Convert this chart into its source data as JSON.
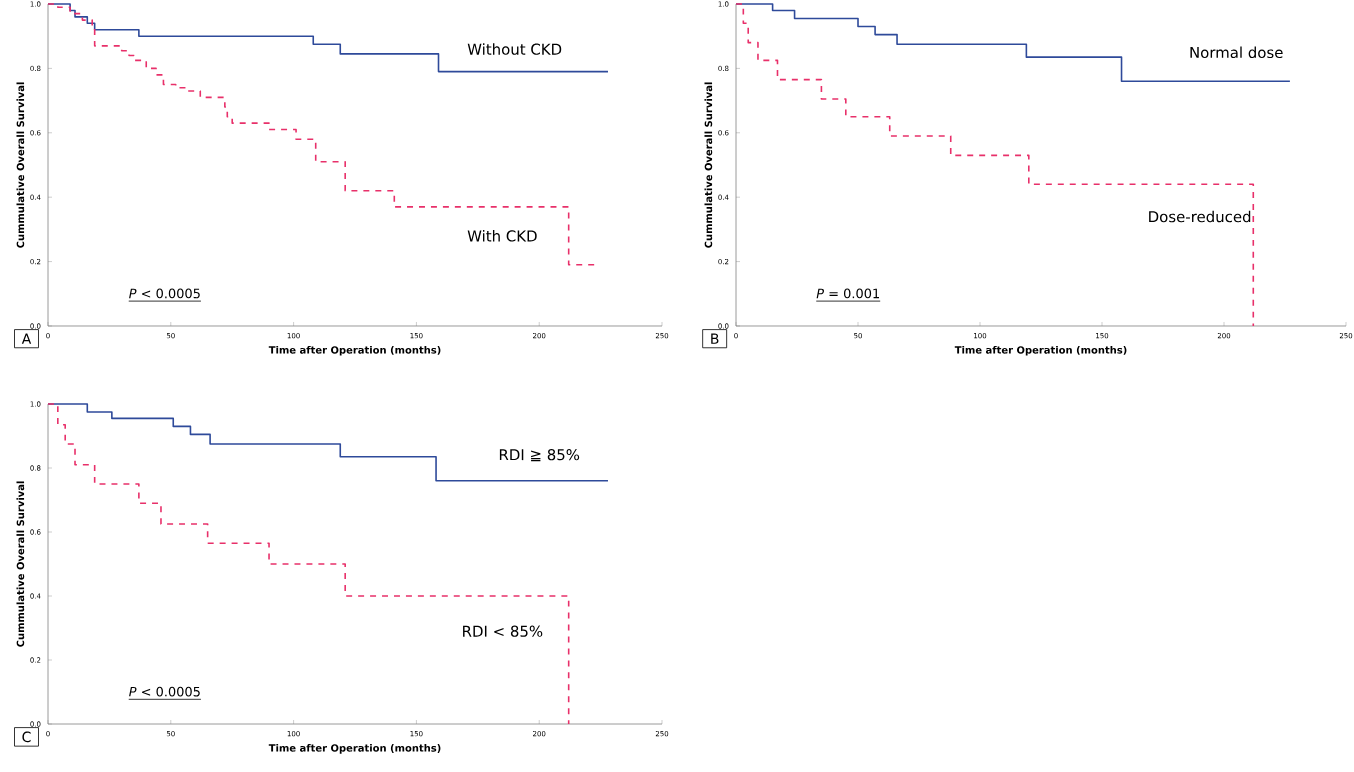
{
  "chart_data": [
    {
      "type": "step",
      "xlabel": "Time after Operation (months)",
      "ylabel": "Cummulative Overall Survival",
      "xlim": [
        0,
        250
      ],
      "xticks": [
        0,
        50,
        100,
        150,
        200,
        250
      ],
      "ylim": [
        0,
        1
      ],
      "yticks": [
        {
          "value": 0,
          "label": "0.0"
        },
        {
          "value": 0.2,
          "label": "0.2"
        },
        {
          "value": 0.4,
          "label": "0.4"
        },
        {
          "value": 0.6,
          "label": "0.6"
        },
        {
          "value": 0.8,
          "label": "0.8"
        },
        {
          "value": 1,
          "label": "1.0"
        }
      ],
      "legend": false,
      "annotations": [
        "A",
        "*P* < 0.0005"
      ],
      "series": [
        {
          "name": "Without CKD",
          "color": "#2e4a9a",
          "line_style": "solid",
          "x": [
            0,
            9,
            11,
            16,
            19,
            37,
            108,
            119,
            159,
            228
          ],
          "values": [
            1,
            0.98,
            0.96,
            0.94,
            0.92,
            0.9,
            0.875,
            0.845,
            0.79,
            0.79
          ]
        },
        {
          "name": "With CKD",
          "color": "#e8306a",
          "line_style": "dashed",
          "x": [
            0,
            4,
            9,
            14,
            18,
            19,
            30,
            33,
            35,
            40,
            44,
            47,
            52,
            57,
            62,
            72,
            73,
            75,
            90,
            101,
            109,
            121,
            141,
            212,
            224
          ],
          "values": [
            1,
            0.99,
            0.97,
            0.95,
            0.93,
            0.87,
            0.855,
            0.84,
            0.825,
            0.8,
            0.78,
            0.75,
            0.74,
            0.73,
            0.71,
            0.68,
            0.65,
            0.63,
            0.61,
            0.58,
            0.51,
            0.42,
            0.37,
            0.19,
            0.19
          ]
        }
      ]
    },
    {
      "type": "step",
      "xlabel": "Time after Operation (months)",
      "ylabel": "Cummulative Overall Survival",
      "xlim": [
        0,
        250
      ],
      "xticks": [
        0,
        50,
        100,
        150,
        200,
        250
      ],
      "ylim": [
        0,
        1
      ],
      "yticks": [
        {
          "value": 0,
          "label": "0.0"
        },
        {
          "value": 0.2,
          "label": "0.2"
        },
        {
          "value": 0.4,
          "label": "0.4"
        },
        {
          "value": 0.6,
          "label": "0.6"
        },
        {
          "value": 0.8,
          "label": "0.8"
        },
        {
          "value": 1,
          "label": "1.0"
        }
      ],
      "legend": false,
      "annotations": [
        "B",
        "*P* = 0.001"
      ],
      "series": [
        {
          "name": "Normal dose",
          "color": "#2e4a9a",
          "line_style": "solid",
          "x": [
            0,
            15,
            24,
            50,
            57,
            66,
            119,
            158,
            227
          ],
          "values": [
            1,
            0.98,
            0.955,
            0.93,
            0.905,
            0.875,
            0.835,
            0.76,
            0.76
          ]
        },
        {
          "name": "Dose-reduced",
          "color": "#e8306a",
          "line_style": "dashed",
          "x": [
            0,
            3,
            5,
            9,
            17,
            35,
            45,
            63,
            88,
            120,
            212
          ],
          "values": [
            1,
            0.94,
            0.88,
            0.825,
            0.765,
            0.705,
            0.65,
            0.59,
            0.53,
            0.44,
            0
          ]
        }
      ]
    },
    {
      "type": "step",
      "xlabel": "Time after Operation (months)",
      "ylabel": "Cummulative Overall Survival",
      "xlim": [
        0,
        250
      ],
      "xticks": [
        0,
        50,
        100,
        150,
        200,
        250
      ],
      "ylim": [
        0,
        1
      ],
      "yticks": [
        {
          "value": 0,
          "label": "0.0"
        },
        {
          "value": 0.2,
          "label": "0.2"
        },
        {
          "value": 0.4,
          "label": "0.4"
        },
        {
          "value": 0.6,
          "label": "0.6"
        },
        {
          "value": 0.8,
          "label": "0.8"
        },
        {
          "value": 1,
          "label": "1.0"
        }
      ],
      "legend": false,
      "annotations": [
        "C",
        "*P* < 0.0005"
      ],
      "series": [
        {
          "name": "RDI ≧ 85%",
          "color": "#2e4a9a",
          "line_style": "solid",
          "x": [
            0,
            16,
            26,
            51,
            58,
            66,
            119,
            158,
            228
          ],
          "values": [
            1,
            0.975,
            0.955,
            0.93,
            0.905,
            0.875,
            0.835,
            0.76,
            0.76
          ]
        },
        {
          "name": "RDI < 85%",
          "color": "#e8306a",
          "line_style": "dashed",
          "x": [
            0,
            4,
            7,
            11,
            19,
            37,
            46,
            65,
            90,
            121,
            212
          ],
          "values": [
            1,
            0.935,
            0.875,
            0.81,
            0.75,
            0.69,
            0.625,
            0.565,
            0.5,
            0.4,
            0
          ]
        }
      ]
    }
  ]
}
